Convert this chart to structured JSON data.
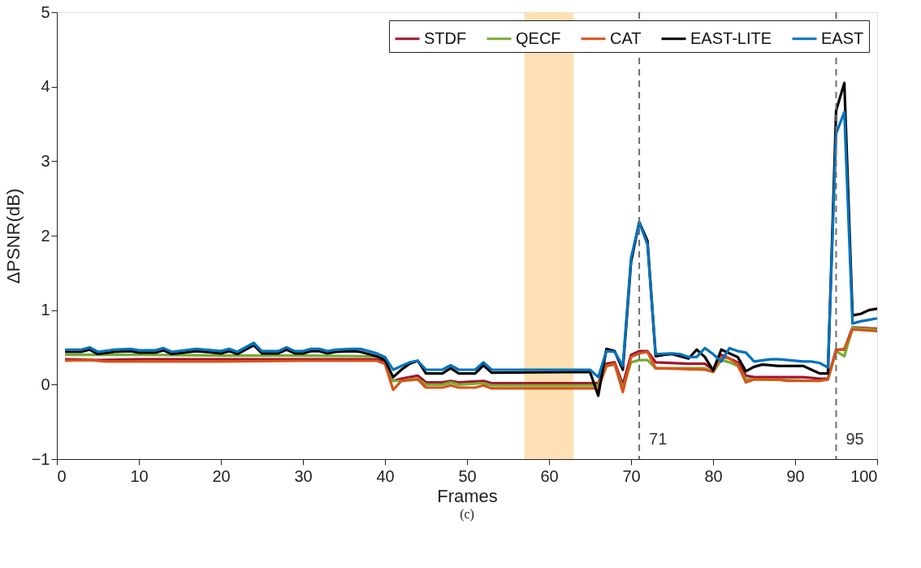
{
  "chart_data": {
    "type": "line",
    "xlabel": "Frames",
    "ylabel": "ΔPSNR(dB)",
    "xlim": [
      0,
      100
    ],
    "xticks": [
      0,
      10,
      20,
      30,
      40,
      50,
      60,
      70,
      80,
      90,
      100
    ],
    "ylim": [
      -1,
      5
    ],
    "yticks": [
      -1,
      0,
      1,
      2,
      3,
      4,
      5
    ],
    "grid": false,
    "legend": "top right",
    "marker": "none",
    "line_style": "solid",
    "annotations": [
      "(c)"
    ],
    "bands": [
      {
        "axis": "x",
        "from": 57,
        "to": 63,
        "color": "#fde0b3"
      }
    ],
    "ref_lines": [
      {
        "axis": "x",
        "value": 71,
        "label": "71",
        "color": "#6e6e6e",
        "line_style": "dashed"
      },
      {
        "axis": "x",
        "value": 95,
        "label": "95",
        "color": "#6e6e6e",
        "line_style": "dashed"
      }
    ],
    "series": [
      {
        "name": "STDF",
        "color": "#a2142f",
        "x": [
          1,
          5,
          10,
          20,
          30,
          39,
          40,
          41,
          42,
          43,
          44,
          45,
          47,
          48,
          49,
          52,
          53,
          65,
          66,
          67,
          68,
          69,
          70,
          71,
          72,
          73,
          77,
          79,
          80,
          81,
          82,
          83,
          84,
          85,
          88,
          91,
          93,
          94,
          95,
          96,
          97,
          100
        ],
        "values": [
          0.34,
          0.33,
          0.34,
          0.34,
          0.34,
          0.34,
          0.3,
          0.05,
          0.08,
          0.1,
          0.12,
          0.03,
          0.03,
          0.05,
          0.03,
          0.05,
          0.02,
          0.02,
          0.02,
          0.28,
          0.3,
          0.0,
          0.4,
          0.45,
          0.45,
          0.3,
          0.28,
          0.28,
          0.2,
          0.4,
          0.35,
          0.3,
          0.12,
          0.1,
          0.1,
          0.1,
          0.08,
          0.08,
          0.47,
          0.47,
          0.77,
          0.75
        ]
      },
      {
        "name": "QECF",
        "color": "#77ac30",
        "x": [
          1,
          10,
          20,
          30,
          39,
          40,
          41,
          42,
          43,
          44,
          45,
          47,
          48,
          49,
          52,
          53,
          65,
          66,
          67,
          68,
          69,
          70,
          71,
          72,
          73,
          79,
          80,
          81,
          82,
          83,
          84,
          85,
          93,
          94,
          95,
          96,
          97,
          100
        ],
        "values": [
          0.4,
          0.4,
          0.39,
          0.39,
          0.38,
          0.35,
          0.05,
          0.05,
          0.07,
          0.08,
          0.0,
          0.0,
          0.03,
          0.0,
          0.02,
          -0.01,
          -0.01,
          -0.01,
          0.25,
          0.27,
          -0.05,
          0.3,
          0.33,
          0.33,
          0.22,
          0.22,
          0.17,
          0.33,
          0.3,
          0.25,
          0.07,
          0.07,
          0.05,
          0.07,
          0.45,
          0.38,
          0.76,
          0.74
        ]
      },
      {
        "name": "CAT",
        "color": "#d95319",
        "x": [
          1,
          4,
          6,
          20,
          30,
          39,
          40,
          41,
          42,
          43,
          44,
          45,
          47,
          48,
          49,
          51,
          52,
          53,
          65,
          66,
          67,
          68,
          69,
          70,
          71,
          72,
          73,
          79,
          80,
          81,
          82,
          83,
          84,
          85,
          88,
          89,
          93,
          94,
          95,
          96,
          97,
          100
        ],
        "values": [
          0.32,
          0.33,
          0.31,
          0.31,
          0.32,
          0.32,
          0.28,
          -0.07,
          0.05,
          0.06,
          0.07,
          -0.04,
          -0.04,
          -0.01,
          -0.04,
          -0.04,
          -0.01,
          -0.05,
          -0.05,
          -0.05,
          0.25,
          0.28,
          -0.1,
          0.37,
          0.42,
          0.44,
          0.22,
          0.2,
          0.17,
          0.37,
          0.35,
          0.27,
          0.03,
          0.07,
          0.07,
          0.05,
          0.05,
          0.07,
          0.46,
          0.48,
          0.74,
          0.72
        ]
      },
      {
        "name": "EAST-LITE",
        "color": "#000000",
        "x": [
          1,
          3,
          4,
          5,
          7,
          9,
          10,
          12,
          13,
          14,
          17,
          18,
          20,
          21,
          22,
          23,
          24,
          25,
          27,
          28,
          29,
          30,
          31,
          32,
          33,
          34,
          36,
          37,
          38,
          39,
          40,
          41,
          42,
          43,
          44,
          45,
          47,
          48,
          49,
          51,
          52,
          53,
          65,
          66,
          67,
          68,
          69,
          70,
          71,
          72,
          73,
          74,
          75,
          76,
          77,
          78,
          79,
          80,
          81,
          82,
          83,
          84,
          85,
          86,
          88,
          91,
          92,
          93,
          94,
          95,
          96,
          97,
          98,
          99,
          100
        ],
        "values": [
          0.44,
          0.44,
          0.47,
          0.41,
          0.44,
          0.45,
          0.43,
          0.43,
          0.46,
          0.41,
          0.45,
          0.44,
          0.42,
          0.45,
          0.41,
          0.47,
          0.53,
          0.42,
          0.42,
          0.47,
          0.42,
          0.42,
          0.45,
          0.45,
          0.42,
          0.44,
          0.45,
          0.44,
          0.41,
          0.38,
          0.33,
          0.1,
          0.2,
          0.28,
          0.32,
          0.15,
          0.15,
          0.22,
          0.15,
          0.15,
          0.26,
          0.16,
          0.17,
          -0.15,
          0.48,
          0.45,
          0.2,
          1.65,
          2.18,
          1.93,
          0.38,
          0.4,
          0.41,
          0.38,
          0.35,
          0.47,
          0.37,
          0.19,
          0.47,
          0.42,
          0.37,
          0.18,
          0.24,
          0.27,
          0.25,
          0.25,
          0.2,
          0.15,
          0.15,
          3.68,
          4.05,
          0.93,
          0.95,
          1.0,
          1.02
        ]
      },
      {
        "name": "EAST",
        "color": "#0072bd",
        "x": [
          1,
          3,
          4,
          5,
          7,
          9,
          10,
          12,
          13,
          14,
          17,
          18,
          20,
          21,
          22,
          23,
          24,
          25,
          27,
          28,
          29,
          30,
          31,
          32,
          33,
          34,
          36,
          37,
          38,
          39,
          40,
          41,
          43,
          44,
          45,
          47,
          48,
          49,
          51,
          52,
          53,
          63,
          65,
          66,
          67,
          68,
          69,
          70,
          71,
          72,
          73,
          75,
          76,
          77,
          78,
          79,
          80,
          81,
          82,
          83,
          84,
          85,
          87,
          88,
          91,
          92,
          93,
          94,
          95,
          96,
          97,
          98,
          99,
          100
        ],
        "values": [
          0.47,
          0.47,
          0.5,
          0.44,
          0.47,
          0.48,
          0.46,
          0.46,
          0.49,
          0.44,
          0.48,
          0.47,
          0.45,
          0.48,
          0.44,
          0.5,
          0.56,
          0.45,
          0.45,
          0.5,
          0.45,
          0.45,
          0.48,
          0.48,
          0.45,
          0.47,
          0.48,
          0.48,
          0.45,
          0.42,
          0.37,
          0.2,
          0.3,
          0.32,
          0.2,
          0.2,
          0.26,
          0.2,
          0.2,
          0.3,
          0.2,
          0.2,
          0.2,
          0.1,
          0.45,
          0.44,
          0.25,
          1.7,
          2.18,
          1.88,
          0.41,
          0.42,
          0.41,
          0.37,
          0.37,
          0.49,
          0.41,
          0.31,
          0.49,
          0.45,
          0.43,
          0.31,
          0.34,
          0.34,
          0.31,
          0.31,
          0.29,
          0.23,
          3.37,
          3.66,
          0.82,
          0.85,
          0.87,
          0.89
        ]
      }
    ]
  }
}
